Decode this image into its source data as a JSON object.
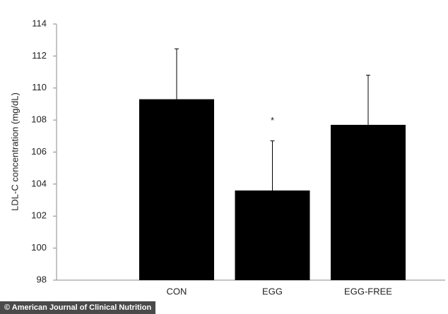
{
  "chart_data": {
    "type": "bar",
    "y_label": "LDL-C concentration (mg/dL)",
    "categories": [
      "CON",
      "EGG",
      "EGG-FREE"
    ],
    "values": [
      109.3,
      103.6,
      107.7
    ],
    "errors": [
      3.15,
      3.1,
      3.1
    ],
    "color": "#000000",
    "ylim": [
      98,
      114
    ],
    "yticks": [
      98,
      100,
      102,
      104,
      106,
      108,
      110,
      112,
      114
    ],
    "annotations": [
      {
        "text": "*",
        "category": "EGG"
      }
    ]
  },
  "caption": "© American Journal of Clinical Nutrition"
}
